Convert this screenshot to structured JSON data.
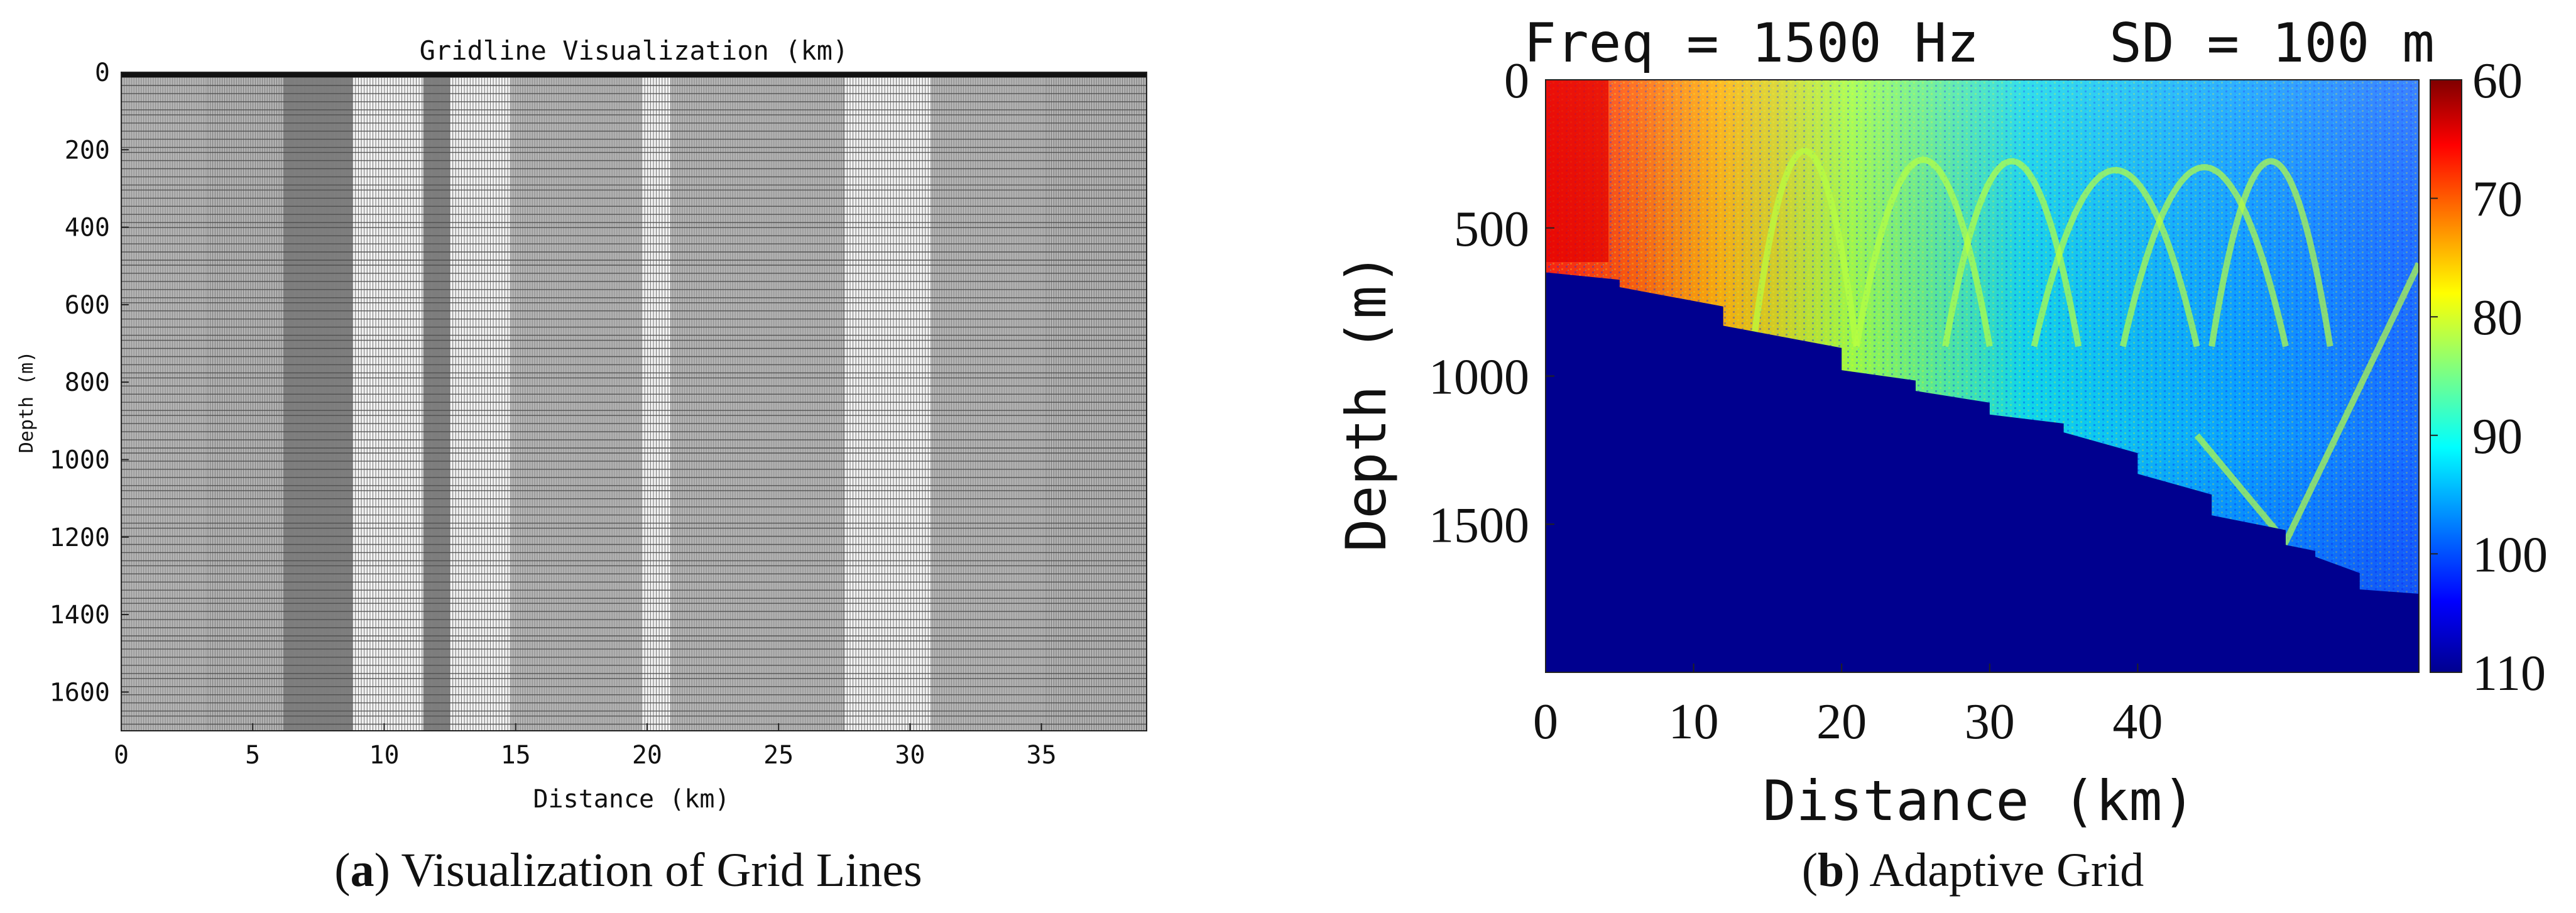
{
  "panel_a": {
    "caption_letter": "a",
    "caption_text": " Visualization of Grid Lines"
  },
  "panel_b": {
    "caption_letter": "b",
    "caption_text": " Adaptive Grid"
  },
  "chart_data": [
    {
      "type": "heatmap",
      "subtype": "grid-line visualization",
      "title": "Gridline Visualization (km)",
      "xlabel": "Distance (km)",
      "ylabel": "Depth (m)",
      "xlim": [
        0,
        39
      ],
      "ylim": [
        0,
        1700
      ],
      "y_reversed": true,
      "xticks": [
        0,
        5,
        10,
        15,
        20,
        25,
        30,
        35
      ],
      "yticks": [
        0,
        200,
        400,
        600,
        800,
        1000,
        1200,
        1400,
        1600
      ],
      "colors": {
        "background": "#c4c4c4",
        "line": "#4a4a4a",
        "dense": "#8a8a8a",
        "open": "#f2f2f2"
      },
      "grid_columns": [
        {
          "from": 0,
          "to": 3.3,
          "density": "medium"
        },
        {
          "from": 3.3,
          "to": 6.2,
          "density": "low"
        },
        {
          "from": 6.2,
          "to": 8.8,
          "density": "high"
        },
        {
          "from": 8.8,
          "to": 11.5,
          "density": "open"
        },
        {
          "from": 11.5,
          "to": 12.5,
          "density": "high"
        },
        {
          "from": 12.5,
          "to": 14.8,
          "density": "open"
        },
        {
          "from": 14.8,
          "to": 19.8,
          "density": "medium"
        },
        {
          "from": 19.8,
          "to": 20.9,
          "density": "open"
        },
        {
          "from": 20.9,
          "to": 27.5,
          "density": "medium"
        },
        {
          "from": 27.5,
          "to": 30.8,
          "density": "open"
        },
        {
          "from": 30.8,
          "to": 35.2,
          "density": "medium"
        },
        {
          "from": 35.2,
          "to": 39,
          "density": "low"
        }
      ]
    },
    {
      "type": "heatmap",
      "subtype": "transmission loss",
      "title": "Freq = 1500 Hz    SD = 100 m",
      "xlabel": "Distance (km)",
      "ylabel": "Depth (m)",
      "xlim": [
        0,
        59
      ],
      "ylim": [
        0,
        2000
      ],
      "y_reversed": true,
      "xticks": [
        0,
        10,
        20,
        30,
        40
      ],
      "yticks": [
        0,
        500,
        1000,
        1500
      ],
      "colorbar": {
        "ticks": [
          60,
          70,
          80,
          90,
          100,
          110
        ],
        "range": [
          60,
          110
        ],
        "colormap": "jet",
        "reversed": true
      },
      "bathymetry": {
        "distance_km": [
          0,
          5,
          12,
          20,
          25,
          30,
          35,
          40,
          45,
          50,
          52,
          55,
          59
        ],
        "depth_m": [
          650,
          700,
          830,
          980,
          1050,
          1130,
          1190,
          1330,
          1470,
          1570,
          1610,
          1720,
          1750
        ]
      },
      "colors": {
        "seafloor": "#00008f"
      }
    }
  ]
}
